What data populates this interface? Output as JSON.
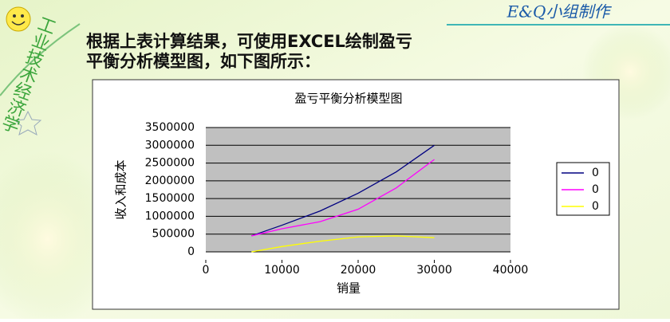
{
  "slide": {
    "brand": "E&Q小组制作",
    "side_label": "工业技术经济学",
    "body_lines": [
      "根据上表计算结果，可使用EXCEL绘制盈亏",
      "平衡分析模型图，如下图所示："
    ]
  },
  "chart_data": {
    "type": "line",
    "title": "盈亏平衡分析模型图",
    "x_label": "销量",
    "y_label": "收入和成本",
    "x": [
      6000,
      10000,
      15000,
      20000,
      25000,
      30000
    ],
    "series": [
      {
        "name": "0",
        "color": "#000080",
        "values": [
          450000,
          750000,
          1150000,
          1650000,
          2250000,
          3000000
        ]
      },
      {
        "name": "0",
        "color": "#ff00ff",
        "values": [
          450000,
          650000,
          850000,
          1200000,
          1800000,
          2600000
        ]
      },
      {
        "name": "0",
        "color": "#ffff00",
        "values": [
          0,
          150000,
          300000,
          420000,
          450000,
          400000
        ]
      }
    ],
    "xlim": [
      0,
      40000
    ],
    "xticks": [
      0,
      10000,
      20000,
      30000,
      40000
    ],
    "ylim": [
      0,
      3500000
    ],
    "yticks": [
      0,
      500000,
      1000000,
      1500000,
      2000000,
      2500000,
      3000000,
      3500000
    ],
    "grid": true,
    "legend": "right"
  }
}
